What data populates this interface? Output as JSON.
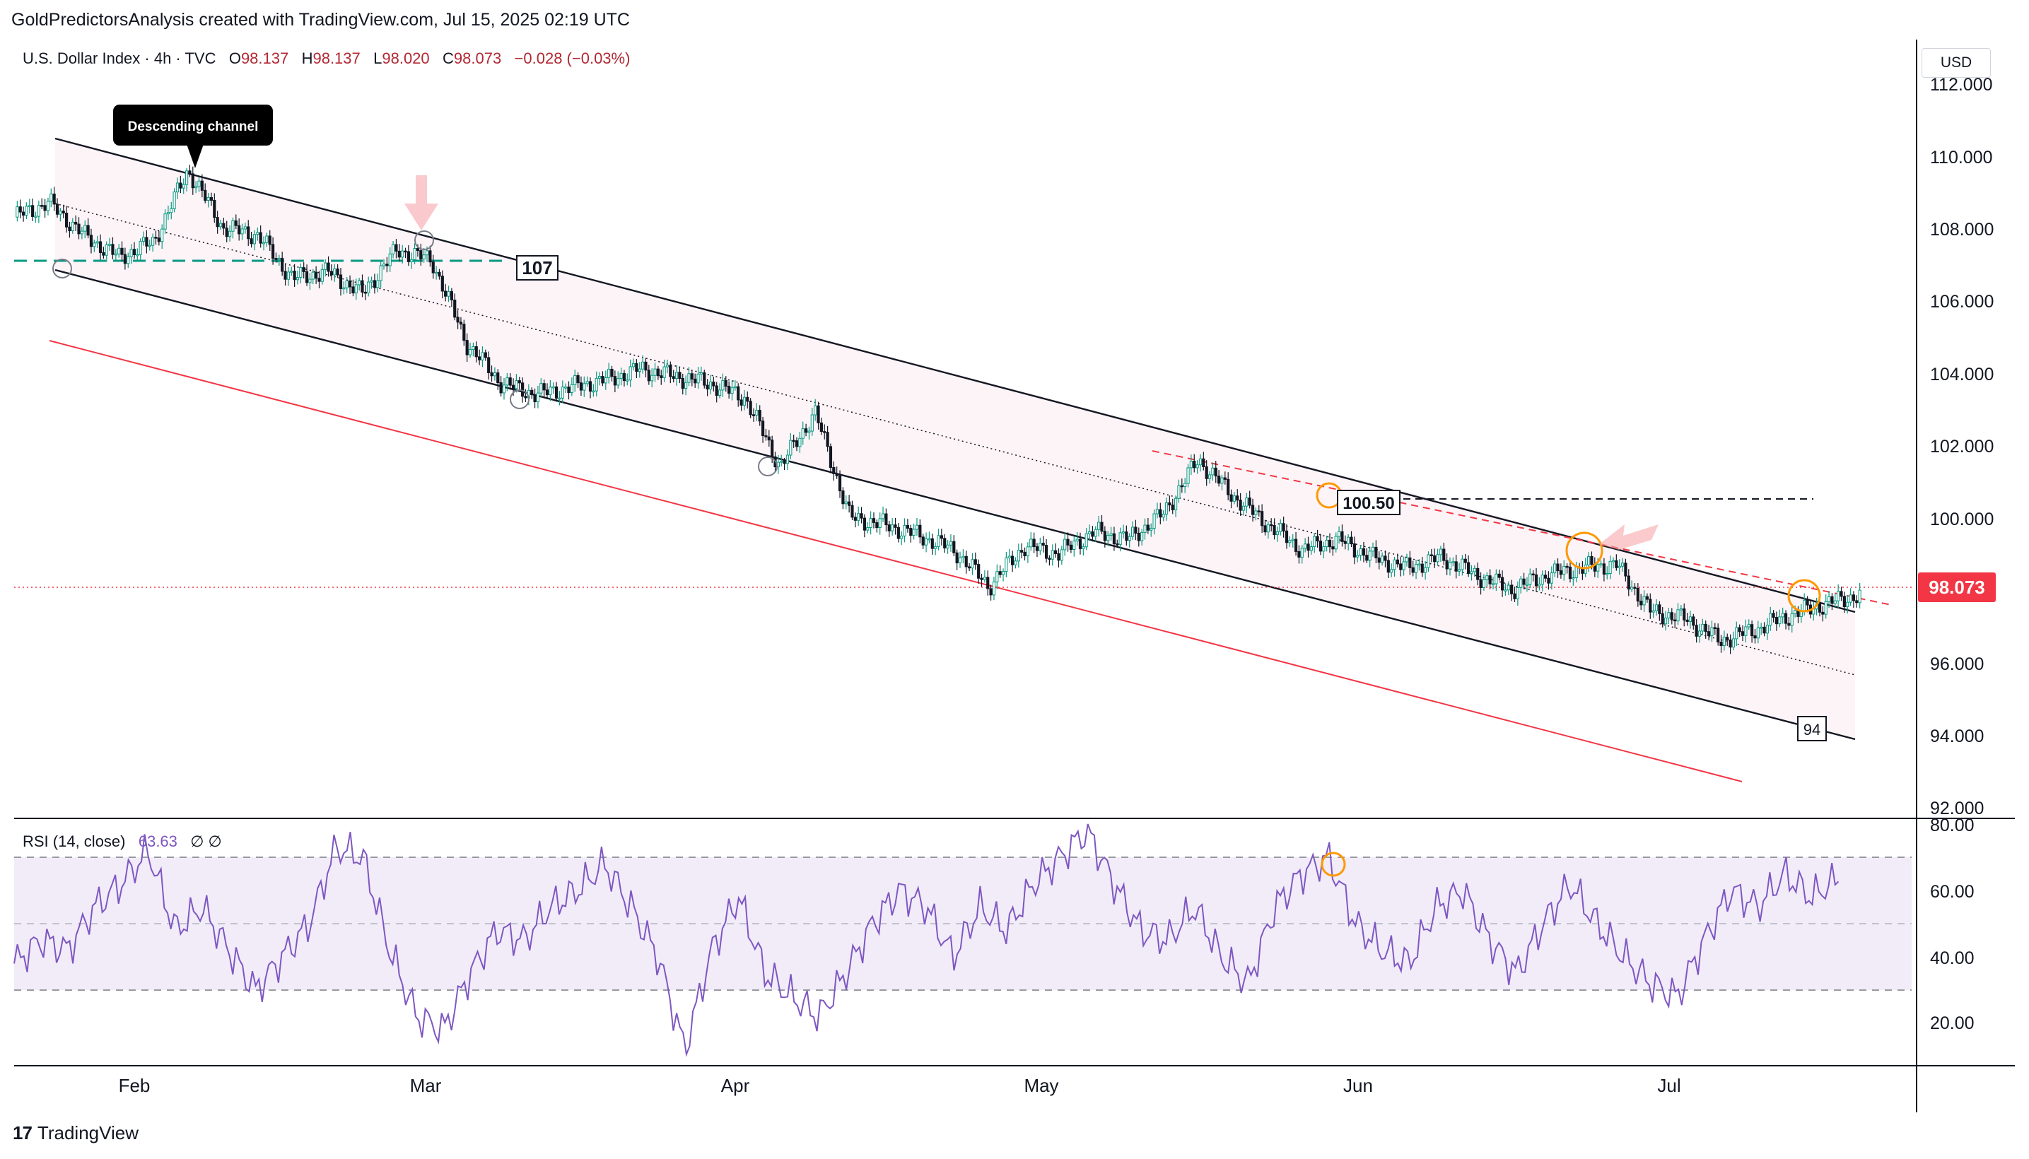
{
  "header": {
    "caption": "GoldPredictorsAnalysis created with TradingView.com, Jul 15, 2025 02:19 UTC"
  },
  "legend": {
    "symbol_line": "U.S. Dollar Index · 4h · TVC",
    "open_label": "O",
    "open": "98.137",
    "high_label": "H",
    "high": "98.137",
    "low_label": "L",
    "low": "98.020",
    "close_label": "C",
    "close": "98.073",
    "change": "−0.028 (−0.03%)"
  },
  "currency": "USD",
  "rsi_legend": {
    "label": "RSI (14, close)",
    "value": "63.63",
    "extra": "∅ ∅"
  },
  "annotations": {
    "callout": "Descending channel",
    "level_107": "107",
    "level_100_50": "100.50",
    "level_94": "94"
  },
  "price_badge": {
    "value": "98.073",
    "color": "#f23645"
  },
  "colors": {
    "channel_lines": "#131722",
    "support_line": "#f23645",
    "ma_dash": "#089981",
    "rsi_line": "#7e57c2",
    "rsi_band": "#ede7f6",
    "circle_orange": "#ff9800",
    "arrow_pink": "#f7a6ac",
    "candle_up": "#089981",
    "candle_down": "#131722"
  },
  "price_axis": [
    "112.000",
    "110.000",
    "108.000",
    "106.000",
    "104.000",
    "102.000",
    "100.000",
    "96.000",
    "94.000",
    "92.000"
  ],
  "rsi_axis": [
    "80.00",
    "60.00",
    "40.00",
    "20.00"
  ],
  "time_axis": [
    "Feb",
    "Mar",
    "Apr",
    "May",
    "Jun",
    "Jul"
  ],
  "branding": {
    "logo_mark": "17",
    "logo_text": "TradingView"
  },
  "chart_data": {
    "type": "line",
    "series": [
      {
        "dates": [
          "Jan 14",
          "Jan 17",
          "Jan 20",
          "Jan 24",
          "Jan 28",
          "Feb 3",
          "Feb 6",
          "Feb 11",
          "Feb 14",
          "Feb 19",
          "Feb 24",
          "Feb 28",
          "Mar 3",
          "Mar 5",
          "Mar 7",
          "Mar 11",
          "Mar 14",
          "Mar 19",
          "Mar 24",
          "Mar 28",
          "Mar 31",
          "Apr 2",
          "Apr 3",
          "Apr 7",
          "Apr 10",
          "Apr 11",
          "Apr 15",
          "Apr 18",
          "Apr 21",
          "Apr 24",
          "Apr 29",
          "May 2",
          "May 6",
          "May 9",
          "May 12",
          "May 15",
          "May 20",
          "May 23",
          "May 27",
          "May 29",
          "Jun 3",
          "Jun 6",
          "Jun 11",
          "Jun 13",
          "Jun 17",
          "Jun 20",
          "Jun 23",
          "Jun 25",
          "Jun 27",
          "Jul 1",
          "Jul 4",
          "Jul 8",
          "Jul 11",
          "Jul 14"
        ],
        "values": [
          108.5,
          108.9,
          108.0,
          107.4,
          107.8,
          109.8,
          108.2,
          108.0,
          106.8,
          107.0,
          106.4,
          107.6,
          107.3,
          105.0,
          103.9,
          103.6,
          103.8,
          104.0,
          104.3,
          104.1,
          103.9,
          103.5,
          101.6,
          103.1,
          100.2,
          100.0,
          99.7,
          99.3,
          98.3,
          99.4,
          99.2,
          99.8,
          99.6,
          100.3,
          101.8,
          100.8,
          100.0,
          99.3,
          99.6,
          99.1,
          98.8,
          99.1,
          98.6,
          98.2,
          98.6,
          98.8,
          98.9,
          97.6,
          97.4,
          96.8,
          97.1,
          97.5,
          97.8,
          98.07
        ]
      }
    ],
    "rsi": {
      "label": "RSI (14, close)",
      "values": [
        38,
        45,
        42,
        55,
        62,
        72,
        48,
        55,
        42,
        30,
        40,
        50,
        73,
        70,
        42,
        22,
        18,
        35,
        48,
        45,
        55,
        60,
        68,
        55,
        40,
        12,
        42,
        58,
        35,
        28,
        22,
        35,
        50,
        60,
        55,
        40,
        55,
        48,
        62,
        70,
        78,
        62,
        48,
        45,
        55,
        40,
        32,
        55,
        65,
        70,
        50,
        42,
        38,
        55,
        60,
        45,
        35,
        50,
        62,
        50,
        40,
        32,
        28,
        45,
        60,
        55,
        65,
        58,
        63.63
      ],
      "ylim": [
        10,
        80
      ],
      "bands": [
        30,
        50,
        70
      ]
    },
    "ylim": [
      91.5,
      112.5
    ],
    "xlabel": "",
    "ylabel": "",
    "grid": false
  }
}
